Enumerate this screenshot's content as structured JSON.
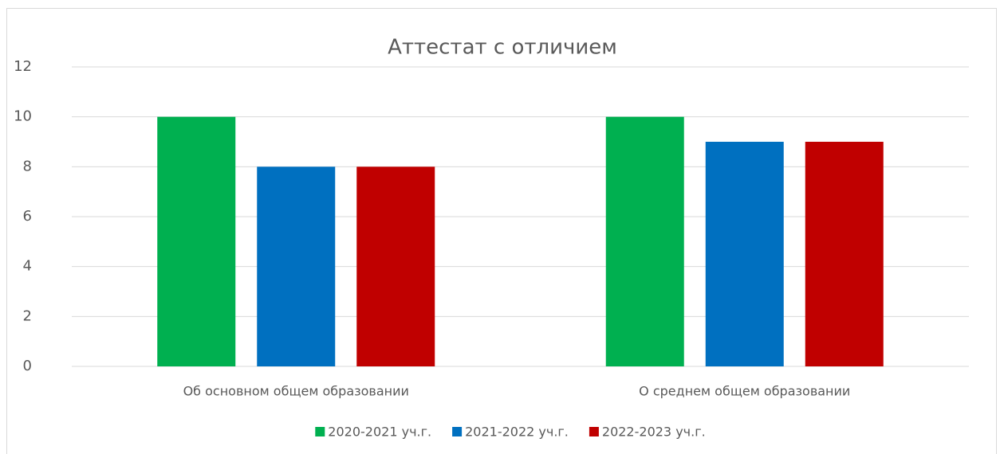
{
  "chart_data": {
    "type": "bar",
    "title": "Аттестат с отличием",
    "categories": [
      "Об основном общем образовании",
      "О среднем общем образовании"
    ],
    "series": [
      {
        "name": "2020-2021 уч.г.",
        "color": "#00b050",
        "values": [
          10,
          10
        ]
      },
      {
        "name": "2021-2022 уч.г.",
        "color": "#0070c0",
        "values": [
          8,
          9
        ]
      },
      {
        "name": "2022-2023 уч.г.",
        "color": "#c00000",
        "values": [
          8,
          9
        ]
      }
    ],
    "ylim": [
      0,
      12
    ],
    "yticks": [
      0,
      2,
      4,
      6,
      8,
      10,
      12
    ],
    "grid": true,
    "legend": "bottom"
  }
}
